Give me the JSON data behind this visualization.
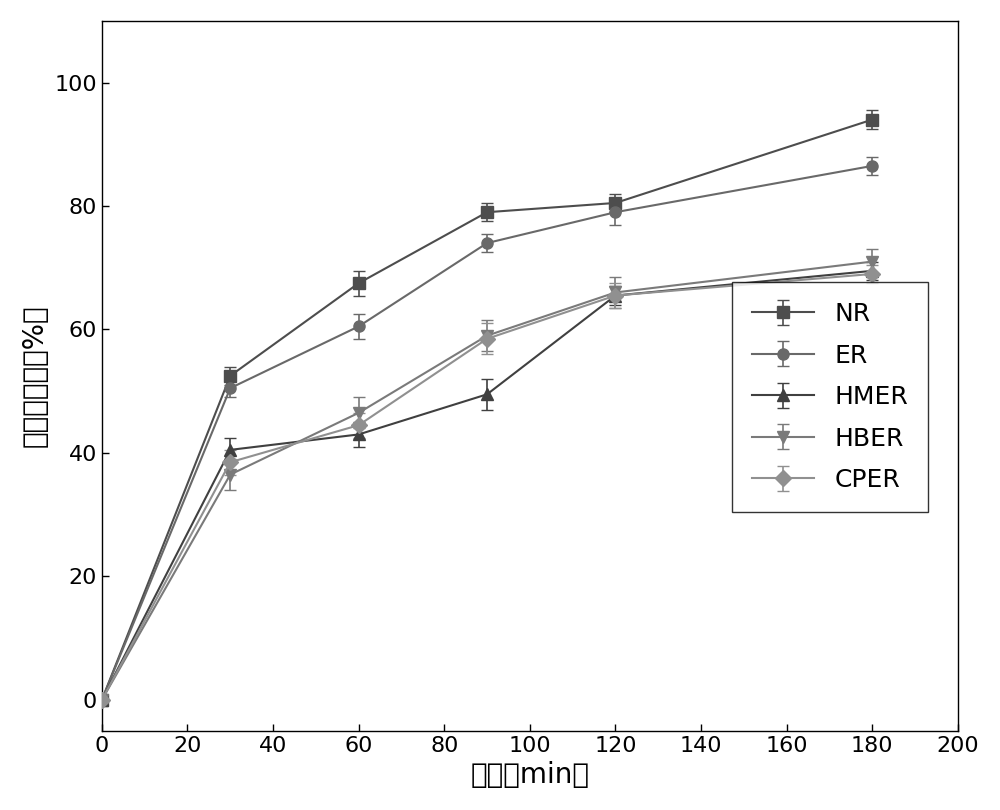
{
  "x": [
    0,
    30,
    60,
    90,
    120,
    180
  ],
  "series": {
    "NR": {
      "y": [
        0,
        52.5,
        67.5,
        79.0,
        80.5,
        94.0
      ],
      "yerr": [
        0.3,
        1.5,
        2.0,
        1.5,
        1.5,
        1.5
      ],
      "marker": "s",
      "color": "#4d4d4d",
      "linestyle": "-"
    },
    "ER": {
      "y": [
        0,
        50.5,
        60.5,
        74.0,
        79.0,
        86.5
      ],
      "yerr": [
        0.3,
        1.5,
        2.0,
        1.5,
        2.0,
        1.5
      ],
      "marker": "o",
      "color": "#696969",
      "linestyle": "-"
    },
    "HMER": {
      "y": [
        0,
        40.5,
        43.0,
        49.5,
        65.5,
        69.5
      ],
      "yerr": [
        0.3,
        2.0,
        2.0,
        2.5,
        1.5,
        1.5
      ],
      "marker": "^",
      "color": "#404040",
      "linestyle": "-"
    },
    "HBER": {
      "y": [
        0,
        36.5,
        46.5,
        59.0,
        66.0,
        71.0
      ],
      "yerr": [
        0.3,
        2.5,
        2.5,
        2.5,
        2.5,
        2.0
      ],
      "marker": "v",
      "color": "#7a7a7a",
      "linestyle": "-"
    },
    "CPER": {
      "y": [
        0,
        38.5,
        44.5,
        58.5,
        65.5,
        69.0
      ],
      "yerr": [
        0.3,
        2.0,
        2.0,
        2.5,
        2.0,
        1.5
      ],
      "marker": "D",
      "color": "#909090",
      "linestyle": "-"
    }
  },
  "xlabel": "时间（min）",
  "ylabel": "淠粉水解率（%）",
  "xlim": [
    0,
    200
  ],
  "ylim": [
    -5,
    110
  ],
  "xticks": [
    0,
    20,
    40,
    60,
    80,
    100,
    120,
    140,
    160,
    180,
    200
  ],
  "yticks": [
    0,
    20,
    40,
    60,
    80,
    100
  ],
  "markersize": 8,
  "linewidth": 1.5,
  "capsize": 4,
  "elinewidth": 1.2,
  "background_color": "#ffffff",
  "tick_labelsize": 16,
  "axis_labelsize": 20,
  "legend_fontsize": 18
}
